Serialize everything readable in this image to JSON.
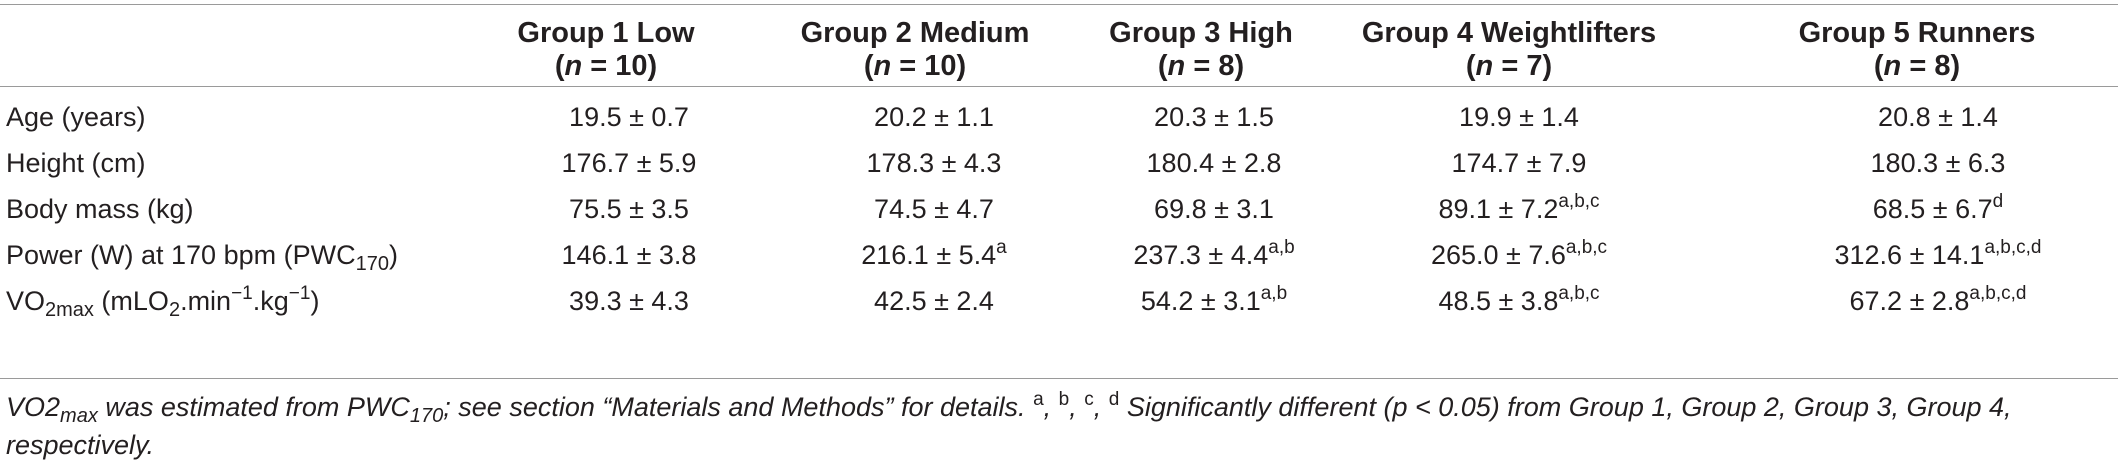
{
  "table": {
    "columns": [
      {
        "name": "Group 1 Low",
        "n_label": "n",
        "n_value": " = 10"
      },
      {
        "name": "Group 2 Medium",
        "n_label": "n",
        "n_value": " = 10"
      },
      {
        "name": "Group 3 High",
        "n_label": "n",
        "n_value": " = 8"
      },
      {
        "name": "Group 4 Weightlifters",
        "n_label": "n",
        "n_value": " = 7"
      },
      {
        "name": "Group 5 Runners",
        "n_label": "n",
        "n_value": " = 8"
      }
    ],
    "rows": [
      {
        "label": "Age (years)",
        "cells": [
          {
            "value": "19.5 ± 0.7",
            "sup": ""
          },
          {
            "value": "20.2 ± 1.1",
            "sup": ""
          },
          {
            "value": "20.3 ± 1.5",
            "sup": ""
          },
          {
            "value": "19.9 ± 1.4",
            "sup": ""
          },
          {
            "value": "20.8 ± 1.4",
            "sup": ""
          }
        ]
      },
      {
        "label": "Height (cm)",
        "cells": [
          {
            "value": "176.7 ± 5.9",
            "sup": ""
          },
          {
            "value": "178.3 ± 4.3",
            "sup": ""
          },
          {
            "value": "180.4 ± 2.8",
            "sup": ""
          },
          {
            "value": "174.7 ± 7.9",
            "sup": ""
          },
          {
            "value": "180.3 ± 6.3",
            "sup": ""
          }
        ]
      },
      {
        "label": "Body mass (kg)",
        "cells": [
          {
            "value": "75.5 ± 3.5",
            "sup": ""
          },
          {
            "value": "74.5 ± 4.7",
            "sup": ""
          },
          {
            "value": "69.8 ± 3.1",
            "sup": ""
          },
          {
            "value": "89.1 ± 7.2",
            "sup": "a,b,c"
          },
          {
            "value": "68.5 ± 6.7",
            "sup": "d"
          }
        ]
      },
      {
        "label_main": "Power (W) at 170 bpm (PWC",
        "label_sub": "170",
        "label_end": ")",
        "cells": [
          {
            "value": "146.1 ± 3.8",
            "sup": ""
          },
          {
            "value": "216.1 ± 5.4",
            "sup": "a"
          },
          {
            "value": "237.3 ± 4.4",
            "sup": "a,b"
          },
          {
            "value": "265.0 ± 7.6",
            "sup": "a,b,c"
          },
          {
            "value": "312.6 ± 14.1",
            "sup": "a,b,c,d"
          }
        ]
      },
      {
        "label_a": "VO",
        "label_sub1": "2max",
        "label_b": " (mLO",
        "label_sub2": "2",
        "label_c": ".min",
        "label_sup1": "−1",
        "label_d": ".kg",
        "label_sup2": "−1",
        "label_e": ")",
        "cells": [
          {
            "value": "39.3 ± 4.3",
            "sup": ""
          },
          {
            "value": "42.5 ± 2.4",
            "sup": ""
          },
          {
            "value": "54.2 ± 3.1",
            "sup": "a,b"
          },
          {
            "value": "48.5 ± 3.8",
            "sup": "a,b,c"
          },
          {
            "value": "67.2 ± 2.8",
            "sup": "a,b,c,d"
          }
        ]
      }
    ]
  },
  "footnote": {
    "part1": "VO2",
    "sub1": "max",
    "part2": " was estimated from PWC",
    "sub2": "170",
    "part3": "; see section “Materials and Methods” for details. ",
    "sup_a": "a",
    "sep1": ", ",
    "sup_b": "b",
    "sep2": ", ",
    "sup_c": "c",
    "sep3": ", ",
    "sup_d": "d",
    "part4": " Significantly different (p < 0.05) from Group 1, Group 2, Group 3, Group 4, respectively."
  }
}
